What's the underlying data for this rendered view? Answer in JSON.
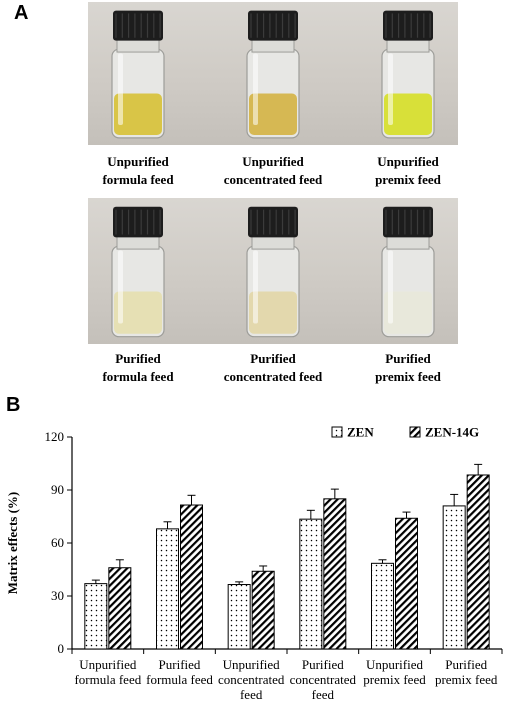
{
  "panel_a": {
    "letter": "A",
    "vials_top": [
      {
        "line1": "Unpurified",
        "line2": "formula feed",
        "liquid": "#d8c23a"
      },
      {
        "line1": "Unpurified",
        "line2": "concentrated feed",
        "liquid": "#d5b446"
      },
      {
        "line1": "Unpurified",
        "line2": "premix feed",
        "liquid": "#d7df2a"
      }
    ],
    "vials_bottom": [
      {
        "line1": "Purified",
        "line2": "formula feed",
        "liquid": "#e6dfb0"
      },
      {
        "line1": "Purified",
        "line2": "concentrated feed",
        "liquid": "#e3d7a8"
      },
      {
        "line1": "Purified",
        "line2": "premix feed",
        "liquid": "#e8e8da"
      }
    ]
  },
  "panel_b": {
    "letter": "B"
  },
  "chart_data": {
    "type": "bar",
    "ylabel": "Matrix effects (%)",
    "xlabel": "",
    "ylim": [
      0,
      120
    ],
    "yticks": [
      0,
      30,
      60,
      90,
      120
    ],
    "categories": [
      [
        "Unpurified",
        "formula feed"
      ],
      [
        "Purified",
        "formula feed"
      ],
      [
        "Unpurified",
        "concentrated",
        "feed"
      ],
      [
        "Purified",
        "concentrated",
        "feed"
      ],
      [
        "Unpurified",
        "premix feed"
      ],
      [
        "Purified",
        "premix feed"
      ]
    ],
    "series": [
      {
        "name": "ZEN",
        "pattern": "dots",
        "values": [
          37,
          68,
          36.5,
          73.5,
          48.5,
          81
        ],
        "errors": [
          2,
          4,
          1.5,
          5,
          2,
          6.5
        ]
      },
      {
        "name": "ZEN-14G",
        "pattern": "hatch",
        "values": [
          46,
          81.5,
          44,
          85,
          74,
          98.5
        ],
        "errors": [
          4.5,
          5.5,
          3,
          5.5,
          3.5,
          6
        ]
      }
    ],
    "legend_position": "top-right",
    "grid": false
  }
}
